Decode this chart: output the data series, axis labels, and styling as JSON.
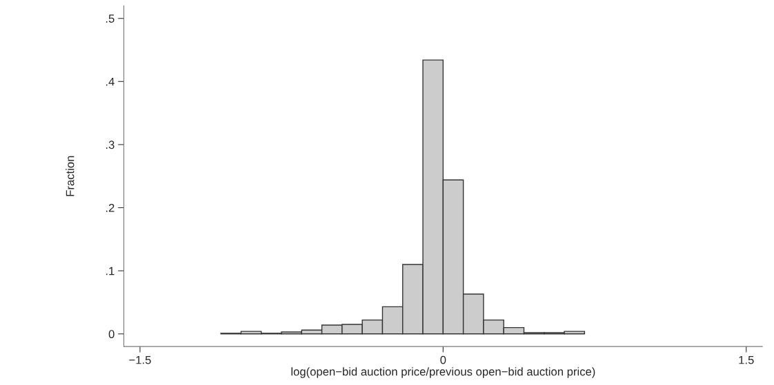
{
  "chart_data": {
    "type": "histogram",
    "xlabel": "log(open−bid auction price/previous open−bid auction price)",
    "ylabel": "Fraction",
    "bins": [
      -1.1,
      -1.0,
      -0.9,
      -0.8,
      -0.7,
      -0.6,
      -0.5,
      -0.4,
      -0.3,
      -0.2,
      -0.1,
      0,
      0.1,
      0.2,
      0.3,
      0.4,
      0.5,
      0.6,
      0.7
    ],
    "values": [
      0.001,
      0.004,
      0.001,
      0.003,
      0.006,
      0.014,
      0.015,
      0.022,
      0.043,
      0.11,
      0.434,
      0.244,
      0.063,
      0.022,
      0.01,
      0.002,
      0.002,
      0.004
    ],
    "color": "#cccccc",
    "xlim": [
      -1.58,
      1.58
    ],
    "xticks": [
      {
        "value": -1.5,
        "label": "−1.5"
      },
      0,
      1.5
    ],
    "ylim": [
      -0.02,
      0.52
    ],
    "yticks": [
      0,
      {
        "value": 0.1,
        "label": ".1"
      },
      {
        "value": 0.2,
        "label": ".2"
      },
      {
        "value": 0.3,
        "label": ".3"
      },
      {
        "value": 0.4,
        "label": ".4"
      },
      {
        "value": 0.5,
        "label": ".5"
      }
    ],
    "grid": false
  }
}
